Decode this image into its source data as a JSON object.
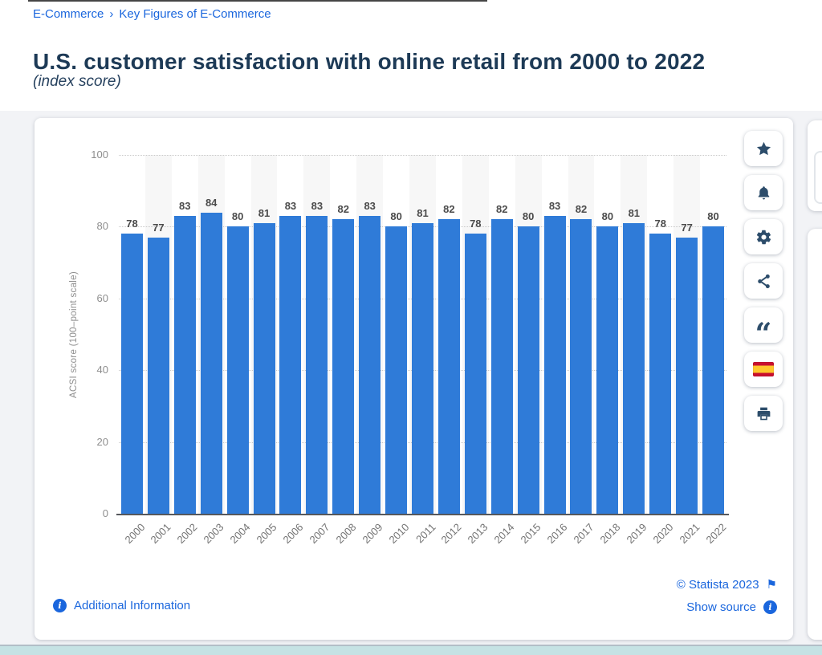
{
  "breadcrumb": {
    "items": [
      "E-Commerce",
      "Key Figures of E-Commerce"
    ],
    "separator": "›"
  },
  "header": {
    "title": "U.S. customer satisfaction with online retail from 2000 to 2022",
    "subtitle": "(index score)"
  },
  "chart_data": {
    "type": "bar",
    "title": "U.S. customer satisfaction with online retail from 2000 to 2022",
    "categories": [
      "2000",
      "2001",
      "2002",
      "2003",
      "2004",
      "2005",
      "2006",
      "2007",
      "2008",
      "2009",
      "2010",
      "2011",
      "2012",
      "2013",
      "2014",
      "2015",
      "2016",
      "2017",
      "2018",
      "2019",
      "2020",
      "2021",
      "2022"
    ],
    "values": [
      78,
      77,
      83,
      84,
      80,
      81,
      83,
      83,
      82,
      83,
      80,
      81,
      82,
      78,
      82,
      80,
      83,
      82,
      80,
      81,
      78,
      77,
      80
    ],
    "xlabel": "",
    "ylabel": "ACSI score (100–point scale)",
    "ylim": [
      0,
      100
    ],
    "yticks": [
      0,
      20,
      40,
      60,
      80,
      100
    ],
    "grid": "horizontal-dotted",
    "legend": "none",
    "bar_color": "#2f7bd8",
    "alt_band_color": "#f7f7f7",
    "value_labels": "above-bars",
    "x_tick_rotation": -45
  },
  "toolbar": {
    "buttons": [
      {
        "name": "favorite",
        "icon": "star-icon"
      },
      {
        "name": "alerts",
        "icon": "bell-icon"
      },
      {
        "name": "settings",
        "icon": "gear-icon"
      },
      {
        "name": "share",
        "icon": "share-icon"
      },
      {
        "name": "cite",
        "icon": "quote-icon"
      },
      {
        "name": "language",
        "icon": "spain-flag-icon"
      },
      {
        "name": "print",
        "icon": "printer-icon"
      }
    ]
  },
  "footer": {
    "additional_information": "Additional Information",
    "copyright": "© Statista 2023",
    "show_source": "Show source"
  },
  "colors": {
    "link_blue": "#1a66dd",
    "title_navy": "#1d3a56",
    "bar_blue": "#2f7bd8",
    "icon_slate": "#2d4d6b",
    "bottom_strip_teal": "#c5e2e4"
  }
}
